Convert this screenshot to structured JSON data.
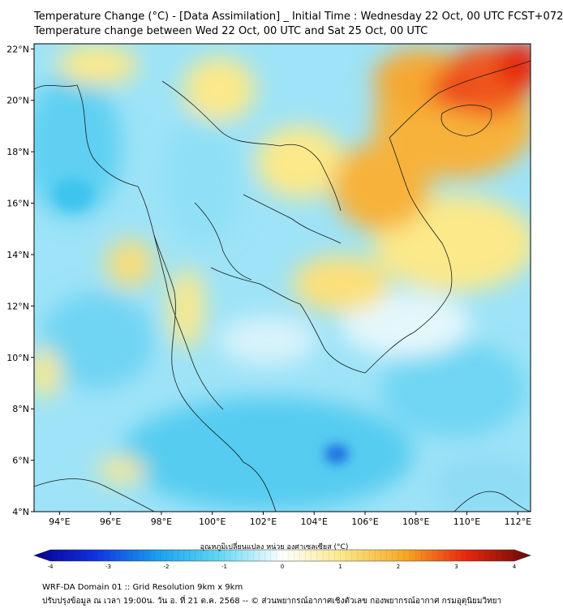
{
  "header": {
    "title_line1": "Temperature Change (°C) - [Data Assimilation] _ Initial Time : Wednesday 22 Oct, 00 UTC FCST+072",
    "title_line2": "Temperature change between Wed 22 Oct, 00 UTC and Sat 25 Oct, 00 UTC"
  },
  "map": {
    "lat_labels": [
      "22°N",
      "20°N",
      "18°N",
      "16°N",
      "14°N",
      "12°N",
      "10°N",
      "8°N",
      "6°N",
      "4°N"
    ],
    "lat_values": [
      22,
      20,
      18,
      16,
      14,
      12,
      10,
      8,
      6,
      4
    ],
    "lon_labels": [
      "94°E",
      "96°E",
      "98°E",
      "100°E",
      "102°E",
      "104°E",
      "106°E",
      "108°E",
      "110°E",
      "112°E"
    ],
    "lon_values": [
      94,
      96,
      98,
      100,
      102,
      104,
      106,
      108,
      110,
      112
    ],
    "lon_range": [
      93,
      112.5
    ],
    "lat_range": [
      4,
      22.2
    ],
    "colors": {
      "cool": "#7fd8f5",
      "cold": "#33bfee",
      "neutral": "#f4fbfd",
      "warm": "#fbeb8a",
      "hot": "#f5a623",
      "very_hot": "#e8270f",
      "coast": "#1a1a1a"
    }
  },
  "colorbar": {
    "label": "อุณหภูมิเปลี่ยนแปลง หน่วย องศาเซลเซียส (°C)",
    "ticks": [
      "-4",
      "-3",
      "-2",
      "-1",
      "0",
      "1",
      "2",
      "3",
      "4"
    ],
    "tick_values": [
      -4,
      -3,
      -2,
      -1,
      0,
      1,
      2,
      3,
      4
    ],
    "range": [
      -4,
      4
    ]
  },
  "footer": {
    "line1": "WRF-DA Domain 01 :: Grid Resolution 9km x 9km",
    "line2": "ปรับปรุงข้อมูล ณ เวลา 19:00น. วัน อ. ที่ 21 ต.ค. 2568 -- © ส่วนพยากรณ์อากาศเชิงตัวเลข กองพยากรณ์อากาศ กรมอุตุนิยมวิทยา"
  }
}
